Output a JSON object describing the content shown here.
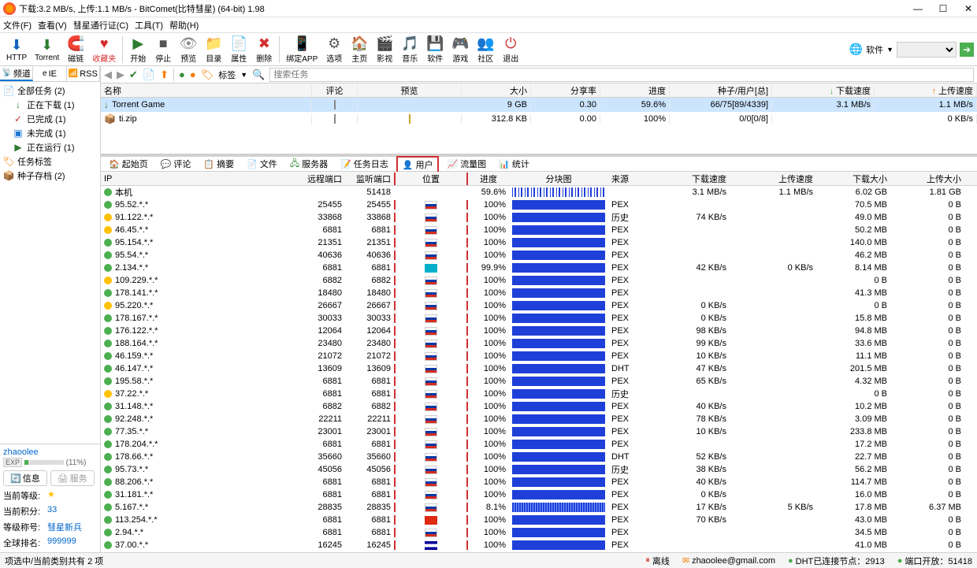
{
  "titlebar": {
    "title": "下载:3.2 MB/s, 上传:1.1 MB/s - BitComet(比特彗星) (64-bit) 1.98"
  },
  "menubar": [
    "文件(F)",
    "查看(V)",
    "彗星通行证(C)",
    "工具(T)",
    "帮助(H)"
  ],
  "toolbar": [
    {
      "label": "HTTP",
      "color": "#1565c0",
      "glyph": "⬇"
    },
    {
      "label": "Torrent",
      "color": "#2e7d32",
      "glyph": "⬇"
    },
    {
      "label": "磁链",
      "color": "#c62828",
      "glyph": "🧲"
    },
    {
      "label": "收藏夹",
      "color": "#d32f2f",
      "glyph": "♥",
      "active": true
    },
    {
      "sep": true
    },
    {
      "label": "开始",
      "color": "#2e7d32",
      "glyph": "▶"
    },
    {
      "label": "停止",
      "color": "#555",
      "glyph": "■"
    },
    {
      "label": "预览",
      "color": "#888",
      "glyph": "👁"
    },
    {
      "label": "目录",
      "color": "#ff9800",
      "glyph": "📁"
    },
    {
      "label": "属性",
      "color": "#555",
      "glyph": "📄"
    },
    {
      "label": "删除",
      "color": "#d32f2f",
      "glyph": "✖"
    },
    {
      "sep": true
    },
    {
      "label": "绑定APP",
      "color": "#0288d1",
      "glyph": "📱"
    },
    {
      "label": "选项",
      "color": "#555",
      "glyph": "⚙"
    },
    {
      "label": "主页",
      "color": "#ff7043",
      "glyph": "🏠"
    },
    {
      "label": "影视",
      "color": "#d32f2f",
      "glyph": "🎬"
    },
    {
      "label": "音乐",
      "color": "#1976d2",
      "glyph": "🎵"
    },
    {
      "label": "软件",
      "color": "#d32f2f",
      "glyph": "💾"
    },
    {
      "label": "游戏",
      "color": "#388e3c",
      "glyph": "🎮"
    },
    {
      "label": "社区",
      "color": "#fb8c00",
      "glyph": "👥"
    },
    {
      "label": "退出",
      "color": "#d32f2f",
      "glyph": "⏻"
    }
  ],
  "toolbar_right": {
    "software": "软件",
    "dropdown": ""
  },
  "sidebar": {
    "tabs": [
      {
        "label": "频道",
        "ico": "📡"
      },
      {
        "label": "IE",
        "ico": "e"
      },
      {
        "label": "RSS",
        "ico": "📶"
      }
    ],
    "tree": [
      {
        "label": "全部任务 (2)",
        "ico": "📄",
        "color": "#999"
      },
      {
        "label": "正在下载 (1)",
        "ico": "↓",
        "color": "#2e7d32",
        "l": 1
      },
      {
        "label": "已完成 (1)",
        "ico": "✓",
        "color": "#d32f2f",
        "l": 1
      },
      {
        "label": "未完成 (1)",
        "ico": "▣",
        "color": "#1976d2",
        "l": 1
      },
      {
        "label": "正在运行 (1)",
        "ico": "▶",
        "color": "#2e7d32",
        "l": 1
      },
      {
        "label": "任务标签",
        "ico": "🏷",
        "color": "#f57c00"
      },
      {
        "label": "种子存档 (2)",
        "ico": "📦",
        "color": "#388e3c"
      }
    ]
  },
  "user": {
    "name": "zhaoolee",
    "exp_label": "EXP",
    "exp_pct": "(11%)",
    "btn_info": "信息",
    "btn_service": "服务",
    "rows": [
      {
        "k": "当前等级:",
        "v": "",
        "star": true
      },
      {
        "k": "当前积分:",
        "v": "33"
      },
      {
        "k": "等级称号:",
        "v": "彗星新兵"
      },
      {
        "k": "全球排名:",
        "v": "999999"
      }
    ]
  },
  "tagbar": {
    "tags_label": "标签",
    "search_placeholder": "搜索任务"
  },
  "tasklist": {
    "headers": [
      "名称",
      "评论",
      "预览",
      "大小",
      "分享率",
      "进度",
      "种子/用户[总]",
      "下载速度",
      "上传速度"
    ],
    "rows": [
      {
        "ico": "↓",
        "color": "#2e7d32",
        "name": "Torrent Game",
        "comm": "env",
        "prev": "",
        "size": "9 GB",
        "ratio": "0.30",
        "prog": "59.6%",
        "seeds": "66/75[89/4339]",
        "dl": "3.1 MB/s",
        "ul": "1.1 MB/s",
        "sel": true
      },
      {
        "ico": "📦",
        "color": "#f57c00",
        "name": "ti.zip",
        "comm": "env",
        "prev": "folder",
        "size": "312.8 KB",
        "ratio": "0.00",
        "prog": "100%",
        "seeds": "0/0[0/8]",
        "dl": "",
        "ul": "0 KB/s",
        "sel": false
      }
    ]
  },
  "detailtabs": [
    {
      "ico": "🏠",
      "color": "#ff7043",
      "label": "起始页"
    },
    {
      "ico": "💬",
      "color": "#888",
      "label": "评论"
    },
    {
      "ico": "📋",
      "color": "#f57c00",
      "label": "摘要"
    },
    {
      "ico": "📄",
      "color": "#1976d2",
      "label": "文件"
    },
    {
      "ico": "🖧",
      "color": "#388e3c",
      "label": "服务器"
    },
    {
      "ico": "📝",
      "color": "#f57c00",
      "label": "任务日志"
    },
    {
      "ico": "👤",
      "color": "#1976d2",
      "label": "用户",
      "active": true
    },
    {
      "ico": "📈",
      "color": "#d32f2f",
      "label": "流量图"
    },
    {
      "ico": "📊",
      "color": "#388e3c",
      "label": "统计"
    }
  ],
  "peers": {
    "headers": [
      "IP",
      "远程端口",
      "监听端口",
      "位置",
      "",
      "进度",
      "分块图",
      "来源",
      "下载速度",
      "上传速度",
      "下载大小",
      "上传大小"
    ],
    "rows": [
      {
        "d": "g",
        "ip": "本机",
        "rp": "",
        "lp": "51418",
        "flag": "",
        "prog": "59.6%",
        "piece": "local",
        "src": "",
        "dls": "3.1 MB/s",
        "uls": "1.1 MB/s",
        "dlb": "6.02 GB",
        "ulb": "1.81 GB"
      },
      {
        "d": "g",
        "ip": "95.52.*.*",
        "rp": "25455",
        "lp": "25455",
        "flag": "ru",
        "prog": "100%",
        "piece": "full",
        "src": "PEX",
        "dls": "",
        "uls": "",
        "dlb": "70.5 MB",
        "ulb": "0 B"
      },
      {
        "d": "y",
        "ip": "91.122.*.*",
        "rp": "33868",
        "lp": "33868",
        "flag": "ru",
        "prog": "100%",
        "piece": "full",
        "src": "历史",
        "dls": "74 KB/s",
        "uls": "",
        "dlb": "49.0 MB",
        "ulb": "0 B"
      },
      {
        "d": "y",
        "ip": "46.45.*.*",
        "rp": "6881",
        "lp": "6881",
        "flag": "ru",
        "prog": "100%",
        "piece": "full",
        "src": "PEX",
        "dls": "",
        "uls": "",
        "dlb": "50.2 MB",
        "ulb": "0 B"
      },
      {
        "d": "g",
        "ip": "95.154.*.*",
        "rp": "21351",
        "lp": "21351",
        "flag": "ru",
        "prog": "100%",
        "piece": "full",
        "src": "PEX",
        "dls": "",
        "uls": "",
        "dlb": "140.0 MB",
        "ulb": "0 B"
      },
      {
        "d": "g",
        "ip": "95.54.*.*",
        "rp": "40636",
        "lp": "40636",
        "flag": "ru",
        "prog": "100%",
        "piece": "full",
        "src": "PEX",
        "dls": "",
        "uls": "",
        "dlb": "46.2 MB",
        "ulb": "0 B"
      },
      {
        "d": "g",
        "ip": "2.134.*.*",
        "rp": "6881",
        "lp": "6881",
        "flag": "kz",
        "prog": "99.9%",
        "piece": "full",
        "src": "PEX",
        "dls": "42 KB/s",
        "uls": "0 KB/s",
        "dlb": "8.14 MB",
        "ulb": "0 B"
      },
      {
        "d": "y",
        "ip": "109.229.*.*",
        "rp": "6882",
        "lp": "6882",
        "flag": "ru",
        "prog": "100%",
        "piece": "full",
        "src": "PEX",
        "dls": "",
        "uls": "",
        "dlb": "0 B",
        "ulb": "0 B"
      },
      {
        "d": "g",
        "ip": "178.141.*.*",
        "rp": "18480",
        "lp": "18480",
        "flag": "ru",
        "prog": "100%",
        "piece": "full",
        "src": "PEX",
        "dls": "",
        "uls": "",
        "dlb": "41.3 MB",
        "ulb": "0 B"
      },
      {
        "d": "y",
        "ip": "95.220.*.*",
        "rp": "26667",
        "lp": "26667",
        "flag": "ru",
        "prog": "100%",
        "piece": "full",
        "src": "PEX",
        "dls": "0 KB/s",
        "uls": "",
        "dlb": "0 B",
        "ulb": "0 B"
      },
      {
        "d": "g",
        "ip": "178.167.*.*",
        "rp": "30033",
        "lp": "30033",
        "flag": "ru",
        "prog": "100%",
        "piece": "full",
        "src": "PEX",
        "dls": "0 KB/s",
        "uls": "",
        "dlb": "15.8 MB",
        "ulb": "0 B"
      },
      {
        "d": "g",
        "ip": "176.122.*.*",
        "rp": "12064",
        "lp": "12064",
        "flag": "ru",
        "prog": "100%",
        "piece": "full",
        "src": "PEX",
        "dls": "98 KB/s",
        "uls": "",
        "dlb": "94.8 MB",
        "ulb": "0 B"
      },
      {
        "d": "g",
        "ip": "188.164.*.*",
        "rp": "23480",
        "lp": "23480",
        "flag": "ru",
        "prog": "100%",
        "piece": "full",
        "src": "PEX",
        "dls": "99 KB/s",
        "uls": "",
        "dlb": "33.6 MB",
        "ulb": "0 B"
      },
      {
        "d": "g",
        "ip": "46.159.*.*",
        "rp": "21072",
        "lp": "21072",
        "flag": "ru",
        "prog": "100%",
        "piece": "full",
        "src": "PEX",
        "dls": "10 KB/s",
        "uls": "",
        "dlb": "11.1 MB",
        "ulb": "0 B"
      },
      {
        "d": "g",
        "ip": "46.147.*.*",
        "rp": "13609",
        "lp": "13609",
        "flag": "ru",
        "prog": "100%",
        "piece": "full",
        "src": "DHT",
        "dls": "47 KB/s",
        "uls": "",
        "dlb": "201.5 MB",
        "ulb": "0 B"
      },
      {
        "d": "g",
        "ip": "195.58.*.*",
        "rp": "6881",
        "lp": "6881",
        "flag": "ru",
        "prog": "100%",
        "piece": "full",
        "src": "PEX",
        "dls": "65 KB/s",
        "uls": "",
        "dlb": "4.32 MB",
        "ulb": "0 B"
      },
      {
        "d": "y",
        "ip": "37.22.*.*",
        "rp": "6881",
        "lp": "6881",
        "flag": "ru",
        "prog": "100%",
        "piece": "full",
        "src": "历史",
        "dls": "",
        "uls": "",
        "dlb": "0 B",
        "ulb": "0 B"
      },
      {
        "d": "g",
        "ip": "31.148.*.*",
        "rp": "6882",
        "lp": "6882",
        "flag": "ru",
        "prog": "100%",
        "piece": "full",
        "src": "PEX",
        "dls": "40 KB/s",
        "uls": "",
        "dlb": "10.2 MB",
        "ulb": "0 B"
      },
      {
        "d": "g",
        "ip": "92.248.*.*",
        "rp": "22211",
        "lp": "22211",
        "flag": "ru",
        "prog": "100%",
        "piece": "full",
        "src": "PEX",
        "dls": "78 KB/s",
        "uls": "",
        "dlb": "3.09 MB",
        "ulb": "0 B"
      },
      {
        "d": "g",
        "ip": "77.35.*.*",
        "rp": "23001",
        "lp": "23001",
        "flag": "ru",
        "prog": "100%",
        "piece": "full",
        "src": "PEX",
        "dls": "10 KB/s",
        "uls": "",
        "dlb": "233.8 MB",
        "ulb": "0 B"
      },
      {
        "d": "g",
        "ip": "178.204.*.*",
        "rp": "6881",
        "lp": "6881",
        "flag": "ru",
        "prog": "100%",
        "piece": "full",
        "src": "PEX",
        "dls": "",
        "uls": "",
        "dlb": "17.2 MB",
        "ulb": "0 B"
      },
      {
        "d": "g",
        "ip": "178.66.*.*",
        "rp": "35660",
        "lp": "35660",
        "flag": "ru",
        "prog": "100%",
        "piece": "full",
        "src": "DHT",
        "dls": "52 KB/s",
        "uls": "",
        "dlb": "22.7 MB",
        "ulb": "0 B"
      },
      {
        "d": "g",
        "ip": "95.73.*.*",
        "rp": "45056",
        "lp": "45056",
        "flag": "ru",
        "prog": "100%",
        "piece": "full",
        "src": "历史",
        "dls": "38 KB/s",
        "uls": "",
        "dlb": "56.2 MB",
        "ulb": "0 B"
      },
      {
        "d": "g",
        "ip": "88.206.*.*",
        "rp": "6881",
        "lp": "6881",
        "flag": "ru",
        "prog": "100%",
        "piece": "full",
        "src": "PEX",
        "dls": "40 KB/s",
        "uls": "",
        "dlb": "114.7 MB",
        "ulb": "0 B"
      },
      {
        "d": "g",
        "ip": "31.181.*.*",
        "rp": "6881",
        "lp": "6881",
        "flag": "ru",
        "prog": "100%",
        "piece": "full",
        "src": "PEX",
        "dls": "0 KB/s",
        "uls": "",
        "dlb": "16.0 MB",
        "ulb": "0 B"
      },
      {
        "d": "g",
        "ip": "5.167.*.*",
        "rp": "28835",
        "lp": "28835",
        "flag": "ru",
        "prog": "8.1%",
        "piece": "partial",
        "src": "PEX",
        "dls": "17 KB/s",
        "uls": "5 KB/s",
        "dlb": "17.8 MB",
        "ulb": "6.37 MB"
      },
      {
        "d": "g",
        "ip": "113.254.*.*",
        "rp": "6881",
        "lp": "6881",
        "flag": "hk",
        "prog": "100%",
        "piece": "full",
        "src": "PEX",
        "dls": "70 KB/s",
        "uls": "",
        "dlb": "43.0 MB",
        "ulb": "0 B"
      },
      {
        "d": "g",
        "ip": "2.94.*.*",
        "rp": "6881",
        "lp": "6881",
        "flag": "ru",
        "prog": "100%",
        "piece": "full",
        "src": "PEX",
        "dls": "",
        "uls": "",
        "dlb": "34.5 MB",
        "ulb": "0 B"
      },
      {
        "d": "g",
        "ip": "37.00.*.*",
        "rp": "16245",
        "lp": "16245",
        "flag": "xx",
        "prog": "100%",
        "piece": "full",
        "src": "PEX",
        "dls": "",
        "uls": "",
        "dlb": "41.0 MB",
        "ulb": "0 B"
      }
    ]
  },
  "statusbar": {
    "left": "项选中/当前类别共有 2 项",
    "offline": "离线",
    "email": "zhaoolee@gmail.com",
    "dht": "DHT已连接节点：2913",
    "port": "端口开放：51418"
  }
}
